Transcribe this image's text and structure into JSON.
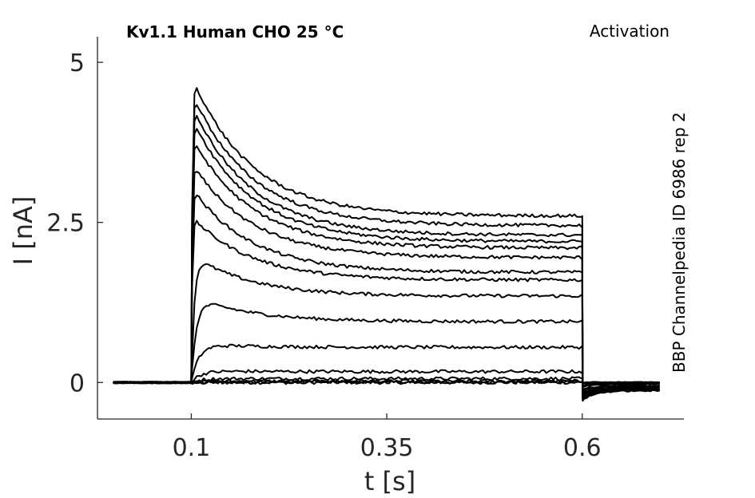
{
  "chart_data": {
    "type": "line",
    "title": "Kv1.1  Human  CHO  25 °C",
    "protocol": "Activation",
    "side_label": "BBP Channelpedia ID 6986 rep 2",
    "xlabel": "t [s]",
    "ylabel": "I [nA]",
    "xlim": [
      -0.02,
      0.73
    ],
    "ylim": [
      -0.57,
      5.4
    ],
    "xticks": [
      0.1,
      0.35,
      0.6
    ],
    "xtick_labels": [
      "0.1",
      "0.35",
      "0.6"
    ],
    "yticks": [
      0,
      2.5,
      5
    ],
    "ytick_labels": [
      "0",
      "2.5",
      "5"
    ],
    "grid": false,
    "legend": "none",
    "stimulus": {
      "onset": 0.1,
      "offset": 0.6,
      "end": 0.7,
      "start": 0.0
    },
    "series": [
      {
        "peak": 0.0,
        "steady": 0.0,
        "tail": 0.0
      },
      {
        "peak": 0.0,
        "steady": 0.01,
        "tail": 0.0
      },
      {
        "peak": 0.02,
        "steady": 0.02,
        "tail": 0.0
      },
      {
        "peak": 0.06,
        "steady": 0.06,
        "tail": -0.01
      },
      {
        "peak": 0.18,
        "steady": 0.17,
        "tail": -0.02
      },
      {
        "peak": 0.6,
        "steady": 0.55,
        "tail": -0.03
      },
      {
        "peak": 1.35,
        "steady": 0.95,
        "tail": -0.05
      },
      {
        "peak": 2.0,
        "steady": 1.35,
        "tail": -0.06
      },
      {
        "peak": 2.6,
        "steady": 1.6,
        "tail": -0.07
      },
      {
        "peak": 3.05,
        "steady": 1.72,
        "tail": -0.08
      },
      {
        "peak": 3.45,
        "steady": 1.95,
        "tail": -0.09
      },
      {
        "peak": 3.85,
        "steady": 2.1,
        "tail": -0.1
      },
      {
        "peak": 4.15,
        "steady": 2.2,
        "tail": -0.11
      },
      {
        "peak": 4.35,
        "steady": 2.3,
        "tail": -0.12
      },
      {
        "peak": 4.55,
        "steady": 2.45,
        "tail": -0.12
      },
      {
        "peak": 4.8,
        "steady": 2.6,
        "tail": -0.13
      }
    ]
  }
}
